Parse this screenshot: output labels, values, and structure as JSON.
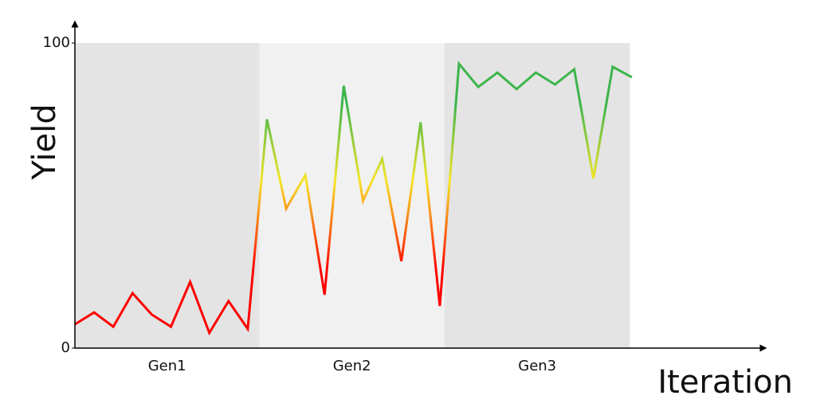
{
  "chart_data": {
    "type": "line",
    "x_label": "Iteration",
    "y_label": "Yield",
    "x": [
      0,
      1,
      2,
      3,
      4,
      5,
      6,
      7,
      8,
      9,
      10,
      11,
      12,
      13,
      14,
      15,
      16,
      17,
      18,
      19,
      20,
      21,
      22,
      23,
      24,
      25,
      26,
      27,
      28,
      29
    ],
    "values": [
      7.8,
      11.7,
      7,
      18,
      11,
      7,
      21.7,
      5,
      15.4,
      6.3,
      75,
      45.7,
      56.7,
      17.5,
      86,
      48.3,
      62,
      28.5,
      74,
      13.8,
      93.2,
      85.6,
      90.3,
      84.9,
      90.3,
      86.4,
      91.4,
      55.6,
      92.2,
      88.8
    ],
    "color_scale": [
      {
        "value": 25,
        "color": "#ff0000"
      },
      {
        "value": 55,
        "color": "#f5e52a"
      },
      {
        "value": 80,
        "color": "#3cb54a"
      }
    ],
    "bands": [
      {
        "label": "Gen1",
        "start": 0,
        "end": 9.6,
        "color": "#e4e4e4"
      },
      {
        "label": "Gen2",
        "start": 9.6,
        "end": 19.25,
        "color": "#f1f1f1"
      },
      {
        "label": "Gen3",
        "start": 19.25,
        "end": 28.9,
        "color": "#e4e4e4"
      }
    ],
    "xlim": [
      0,
      36
    ],
    "ylim": [
      0,
      100
    ],
    "yticks": [
      0,
      100
    ]
  }
}
